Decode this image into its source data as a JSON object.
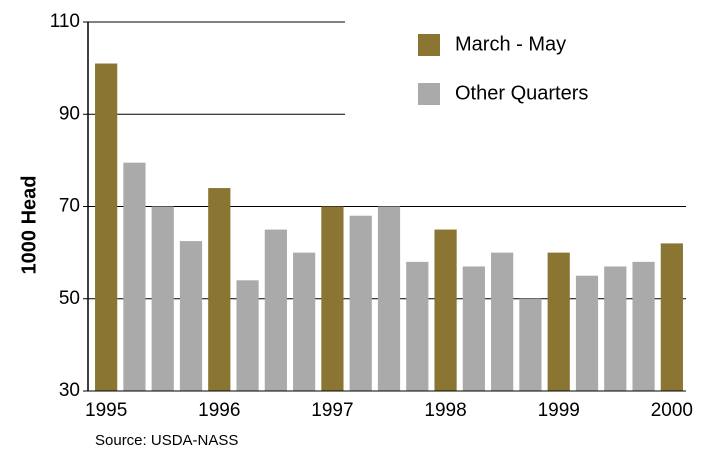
{
  "chart_data": {
    "type": "bar",
    "y_label": "1000 Head",
    "source": "Source: USDA-NASS",
    "categories": [
      "1995",
      null,
      null,
      null,
      "1996",
      null,
      null,
      null,
      "1997",
      null,
      null,
      null,
      "1998",
      null,
      null,
      null,
      "1999",
      null,
      null,
      null,
      "2000"
    ],
    "series": [
      {
        "name": "March - May",
        "color": "#8b7533",
        "values": [
          101,
          null,
          null,
          null,
          74,
          null,
          null,
          null,
          70,
          null,
          null,
          null,
          65,
          null,
          null,
          null,
          60,
          null,
          null,
          null,
          62
        ]
      },
      {
        "name": "Other Quarters",
        "color": "#aaaaaa",
        "values": [
          null,
          79.5,
          70,
          62.5,
          null,
          54,
          65,
          60,
          null,
          68,
          70,
          58,
          null,
          57,
          60,
          50,
          null,
          55,
          57,
          58,
          null
        ]
      }
    ],
    "ylim": [
      30,
      110
    ],
    "yticks": [
      30,
      50,
      70,
      90,
      110
    ],
    "grid": true
  }
}
